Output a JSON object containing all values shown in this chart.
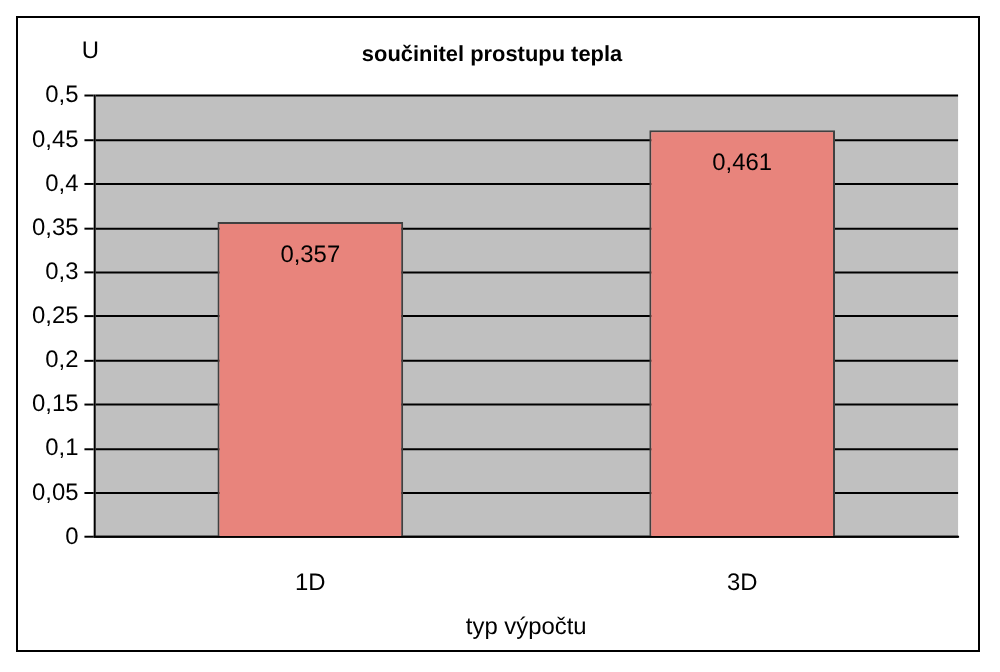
{
  "chart_data": {
    "type": "bar",
    "title": "součinitel prostupu tepla",
    "xlabel": "typ výpočtu",
    "ylabel": "U",
    "categories": [
      "1D",
      "3D"
    ],
    "values": [
      0.357,
      0.461
    ],
    "color": "#e8847c",
    "value_labels": [
      "0,357",
      "0,461"
    ],
    "ylim": [
      0,
      0.5
    ],
    "yticks": [
      {
        "value": 0,
        "label": "0"
      },
      {
        "value": 0.05,
        "label": "0,05"
      },
      {
        "value": 0.1,
        "label": "0,1"
      },
      {
        "value": 0.15,
        "label": "0,15"
      },
      {
        "value": 0.2,
        "label": "0,2"
      },
      {
        "value": 0.25,
        "label": "0,25"
      },
      {
        "value": 0.3,
        "label": "0,3"
      },
      {
        "value": 0.35,
        "label": "0,35"
      },
      {
        "value": 0.4,
        "label": "0,4"
      },
      {
        "value": 0.45,
        "label": "0,45"
      },
      {
        "value": 0.5,
        "label": "0,5"
      }
    ],
    "grid": "y",
    "legend": false
  }
}
